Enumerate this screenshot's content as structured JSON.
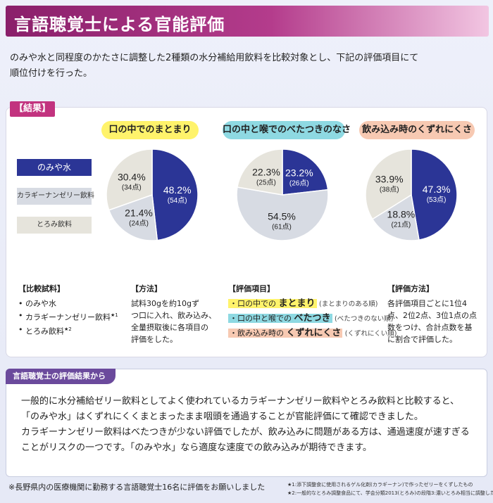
{
  "title": "言語聴覚士による官能評価",
  "intro": {
    "line1": "のみや水と同程度のかたさに調整した2種類の水分補給用飲料を比較対象とし、下記の評価項目にて",
    "line2": "順位付けを行った。"
  },
  "results_label": "【結果】",
  "legend": [
    "のみや水",
    "カラギーナンゼリー飲料",
    "とろみ飲料"
  ],
  "colors": {
    "nomiya": "#2b3596",
    "karagi": "#d7dbe3",
    "toromi": "#e6e4dc",
    "accent": "#c2337f"
  },
  "chart_data": [
    {
      "type": "pie",
      "title": "口の中でのまとまり",
      "labels": [
        "のみや水",
        "カラギーナンゼリー飲料",
        "とろみ飲料"
      ],
      "values": [
        48.2,
        21.4,
        30.4
      ],
      "value_labels": [
        "48.2%",
        "21.4%",
        "30.4%"
      ],
      "points": [
        "(54点)",
        "(24点)",
        "(34点)"
      ]
    },
    {
      "type": "pie",
      "title": "口の中と喉でのべたつきのなさ",
      "labels": [
        "のみや水",
        "カラギーナンゼリー飲料",
        "とろみ飲料"
      ],
      "values": [
        23.2,
        54.5,
        22.3
      ],
      "value_labels": [
        "23.2%",
        "54.5%",
        "22.3%"
      ],
      "points": [
        "(26点)",
        "(61点)",
        "(25点)"
      ]
    },
    {
      "type": "pie",
      "title": "飲み込み時のくずれにくさ",
      "labels": [
        "のみや水",
        "カラギーナンゼリー飲料",
        "とろみ飲料"
      ],
      "values": [
        47.3,
        18.8,
        33.9
      ],
      "value_labels": [
        "47.3%",
        "18.8%",
        "33.9%"
      ],
      "points": [
        "(53点)",
        "(21点)",
        "(38点)"
      ]
    }
  ],
  "samples": {
    "heading": "【比較試料】",
    "items": [
      "のみや水",
      "カラギーナンゼリー飲料",
      "とろみ飲料"
    ],
    "marks": [
      "",
      "★1",
      "★2"
    ]
  },
  "method": {
    "heading": "【方法】",
    "lines": [
      "試料30gを約10gず",
      "つ口に入れ、飲み込み、",
      "全量摂取後に各項目の",
      "評価をした。"
    ]
  },
  "eval_items": {
    "heading": "【評価項目】",
    "items": [
      {
        "prefix": "・口の中での",
        "keyword": "まとまり",
        "note": "(まとまりのある順)"
      },
      {
        "prefix": "・口の中と喉での",
        "keyword": "べたつき",
        "note": "(べたつきのない順)"
      },
      {
        "prefix": "・飲み込み時の",
        "keyword": "くずれにくさ",
        "note": "(くずれにくい順)"
      }
    ]
  },
  "eval_method": {
    "heading": "【評価方法】",
    "lines": [
      "各評価項目ごとに1位4",
      "点、2位2点、3位1点の点",
      "数をつけ、合計点数を基",
      "に割合で評価した。"
    ]
  },
  "summary": {
    "tab": "言語聴覚士の評価結果から",
    "lines": [
      "一般的に水分補給ゼリー飲料としてよく使われているカラギーナンゼリー飲料やとろみ飲料と比較すると、",
      "「のみや水」はくずれにくくまとまったまま咽頭を通過することが官能評価にて確認できました。",
      "カラギーナンゼリー飲料はべたつきが少ない評価でしたが、飲み込みに問題がある方は、通過速度が速すぎる",
      "ことがリスクの一つです。「のみや水」なら適度な速度での飲み込みが期待できます。"
    ]
  },
  "footnote": "※長野県内の医療機関に勤務する言語聴覚士16名に評価をお願いしました",
  "footnote_small": [
    "★1:添下調整食に使用されるゲル化剤(カラギーナン)で作ったゼリーをくずしたもの",
    "★2:一般的なとろみ調整食品にて、学会分類2013(とろみ)の段階3:濃いとろみ相当に調整した飲料"
  ]
}
